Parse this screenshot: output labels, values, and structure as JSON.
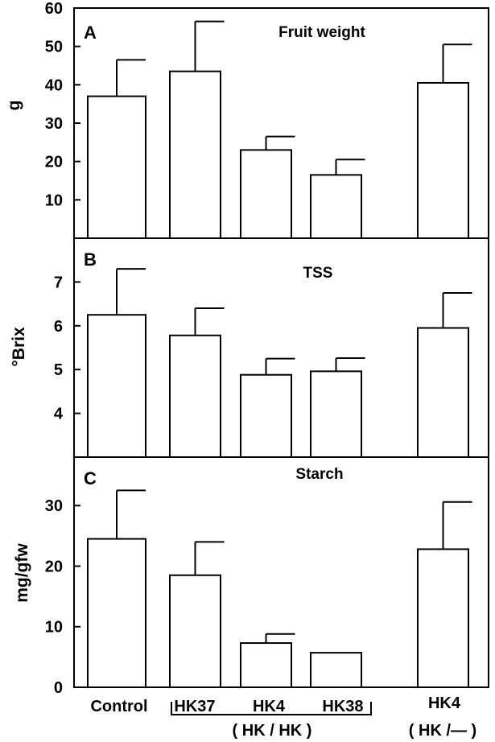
{
  "chart_data": [
    {
      "type": "bar",
      "panel": "A",
      "title": "Fruit weight",
      "ylabel": "g",
      "ylim": [
        0,
        60
      ],
      "yticks": [
        10,
        20,
        30,
        40,
        50,
        60
      ],
      "categories": [
        "Control",
        "HK37",
        "HK4",
        "HK38",
        "HK4"
      ],
      "values": [
        37,
        43.5,
        23,
        16.5,
        40.5
      ],
      "errors": [
        9.5,
        13,
        3.5,
        4,
        10
      ]
    },
    {
      "type": "bar",
      "panel": "B",
      "title": "TSS",
      "ylabel": "°Brix",
      "ylim": [
        3,
        8
      ],
      "yticks": [
        4,
        5,
        6,
        7
      ],
      "categories": [
        "Control",
        "HK37",
        "HK4",
        "HK38",
        "HK4"
      ],
      "values": [
        6.25,
        5.78,
        4.88,
        4.96,
        5.95
      ],
      "errors": [
        1.05,
        0.62,
        0.37,
        0.3,
        0.8
      ]
    },
    {
      "type": "bar",
      "panel": "C",
      "title": "Starch",
      "ylabel": "mg/gfw",
      "ylim": [
        0,
        38
      ],
      "yticks": [
        0,
        10,
        20,
        30
      ],
      "categories": [
        "Control",
        "HK37",
        "HK4",
        "HK38",
        "HK4"
      ],
      "values": [
        24.5,
        18.5,
        7.3,
        5.7,
        22.8
      ],
      "errors": [
        8,
        5.5,
        1.5,
        0,
        7.8
      ]
    }
  ],
  "x_axis": {
    "labels": [
      "Control",
      "HK37",
      "HK4",
      "HK38",
      "HK4"
    ],
    "group_labels": [
      "( HK / HK )",
      "( HK /— )"
    ]
  }
}
